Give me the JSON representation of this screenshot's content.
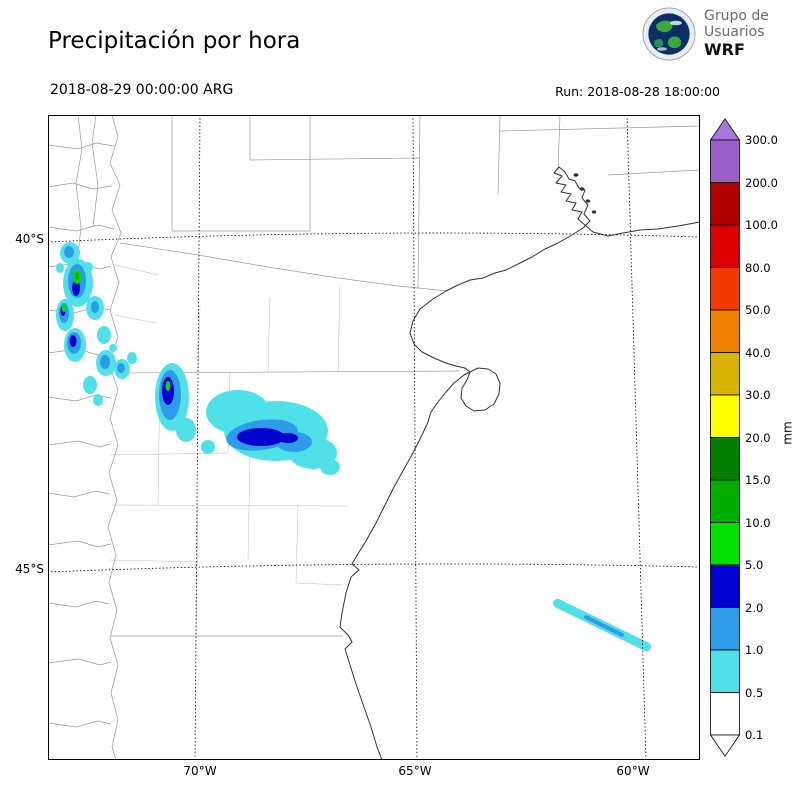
{
  "header": {
    "title": "Precipitación por hora",
    "valid_time": "2018-08-29 00:00:00 ARG",
    "run_label": "Run: 2018-08-28 18:00:00"
  },
  "logo": {
    "line1": "Grupo de",
    "line2": "Usuarios",
    "line3": "WRF"
  },
  "map": {
    "y_ticks": [
      {
        "label": "40°S"
      },
      {
        "label": "45°S"
      }
    ],
    "x_ticks": [
      {
        "label": "70°W"
      },
      {
        "label": "65°W"
      },
      {
        "label": "60°W"
      }
    ]
  },
  "colorbar": {
    "unit": "mm",
    "ticks": [
      "300.0",
      "200.0",
      "100.0",
      "80.0",
      "50.0",
      "40.0",
      "30.0",
      "20.0",
      "15.0",
      "10.0",
      "5.0",
      "2.0",
      "1.0",
      "0.5",
      "0.1"
    ],
    "segments_top_to_bottom": [
      "#9B5FC8",
      "#B00000",
      "#DC0000",
      "#F03C00",
      "#F08000",
      "#D7B400",
      "#FFFF00",
      "#007E00",
      "#00AE00",
      "#00E000",
      "#0000D0",
      "#2E9BE8",
      "#50E0E8",
      "#FFFFFF"
    ],
    "arrow_top_color": "#A878D8",
    "arrow_bottom_color": "#FFFFFF"
  },
  "precipitation_features": [
    {
      "area": "Andes foothills, Neuquén / Río Negro (~39–41.5°S, 70.5–72.5°W)",
      "intensity": "0.5–10 mm/h, isolated 5–10 mm green cores"
    },
    {
      "area": "Central Chubut (~42–43.5°S, 66–69.5°W)",
      "intensity": "0.5–5 mm/h, dark-blue 2–5 mm cores"
    },
    {
      "area": "Atlantic offshore streak (~45.5–46.5°S, 59.5–62°W)",
      "intensity": "0.5–2 mm/h narrow band"
    }
  ]
}
